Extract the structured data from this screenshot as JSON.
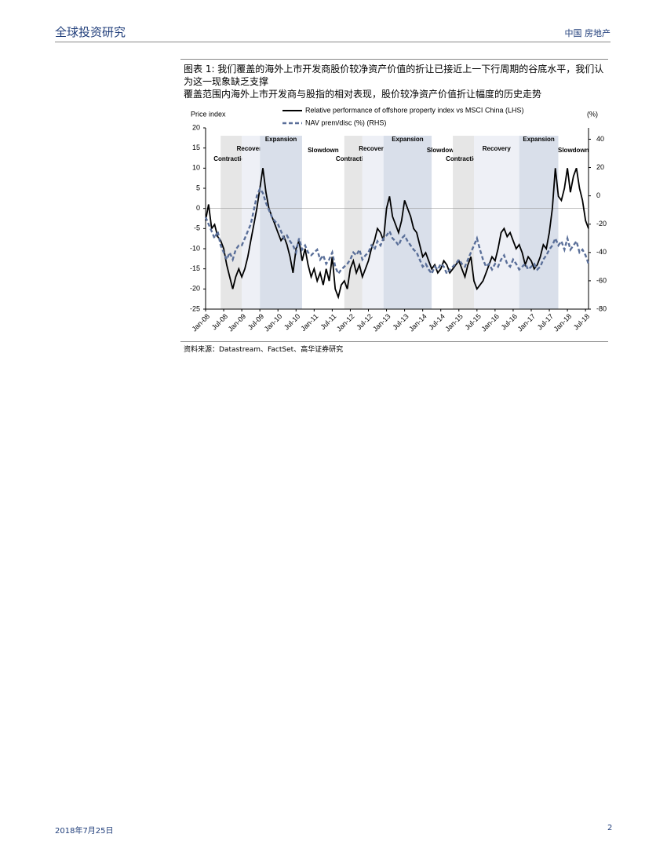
{
  "header": {
    "left": "全球投资研究",
    "right": "中国 房地产"
  },
  "figure": {
    "title": "图表 1: 我们覆盖的海外上市开发商股价较净资产价值的折让已接近上一下行周期的谷底水平，我们认为这一现象缺乏支撑",
    "subtitle": "覆盖范围内海外上市开发商与股指的相对表现，股价较净资产价值折让幅度的历史走势",
    "source": "资料来源：Datastream、FactSet、高华证券研究"
  },
  "chart_data": {
    "type": "line",
    "y_label": "Price index",
    "y2_label": "(%)",
    "x": [
      "2008-01",
      "2008-02",
      "2008-03",
      "2008-04",
      "2008-05",
      "2008-06",
      "2008-07",
      "2008-08",
      "2008-09",
      "2008-10",
      "2008-11",
      "2008-12",
      "2009-01",
      "2009-02",
      "2009-03",
      "2009-04",
      "2009-05",
      "2009-06",
      "2009-07",
      "2009-08",
      "2009-09",
      "2009-10",
      "2009-11",
      "2009-12",
      "2010-01",
      "2010-02",
      "2010-03",
      "2010-04",
      "2010-05",
      "2010-06",
      "2010-07",
      "2010-08",
      "2010-09",
      "2010-10",
      "2010-11",
      "2010-12",
      "2011-01",
      "2011-02",
      "2011-03",
      "2011-04",
      "2011-05",
      "2011-06",
      "2011-07",
      "2011-08",
      "2011-09",
      "2011-10",
      "2011-11",
      "2011-12",
      "2012-01",
      "2012-02",
      "2012-03",
      "2012-04",
      "2012-05",
      "2012-06",
      "2012-07",
      "2012-08",
      "2012-09",
      "2012-10",
      "2012-11",
      "2012-12",
      "2013-01",
      "2013-02",
      "2013-03",
      "2013-04",
      "2013-05",
      "2013-06",
      "2013-07",
      "2013-08",
      "2013-09",
      "2013-10",
      "2013-11",
      "2013-12",
      "2014-01",
      "2014-02",
      "2014-03",
      "2014-04",
      "2014-05",
      "2014-06",
      "2014-07",
      "2014-08",
      "2014-09",
      "2014-10",
      "2014-11",
      "2014-12",
      "2015-01",
      "2015-02",
      "2015-03",
      "2015-04",
      "2015-05",
      "2015-06",
      "2015-07",
      "2015-08",
      "2015-09",
      "2015-10",
      "2015-11",
      "2015-12",
      "2016-01",
      "2016-02",
      "2016-03",
      "2016-04",
      "2016-05",
      "2016-06",
      "2016-07",
      "2016-08",
      "2016-09",
      "2016-10",
      "2016-11",
      "2016-12",
      "2017-01",
      "2017-02",
      "2017-03",
      "2017-04",
      "2017-05",
      "2017-06",
      "2017-07",
      "2017-08",
      "2017-09",
      "2017-10",
      "2017-11",
      "2017-12",
      "2018-01",
      "2018-02",
      "2018-03",
      "2018-04",
      "2018-05",
      "2018-06",
      "2018-07",
      "2018-08"
    ],
    "xlim": [
      "2008-01",
      "2018-08"
    ],
    "xticks": [
      {
        "value": "2008-01",
        "label": "Jan-08"
      },
      {
        "value": "2008-07",
        "label": "Jul-08"
      },
      {
        "value": "2009-01",
        "label": "Jan-09"
      },
      {
        "value": "2009-07",
        "label": "Jul-09"
      },
      {
        "value": "2010-01",
        "label": "Jan-10"
      },
      {
        "value": "2010-07",
        "label": "Jul-10"
      },
      {
        "value": "2011-01",
        "label": "Jan-11"
      },
      {
        "value": "2011-07",
        "label": "Jul-11"
      },
      {
        "value": "2012-01",
        "label": "Jan-12"
      },
      {
        "value": "2012-07",
        "label": "Jul-12"
      },
      {
        "value": "2013-01",
        "label": "Jan-13"
      },
      {
        "value": "2013-07",
        "label": "Jul-13"
      },
      {
        "value": "2014-01",
        "label": "Jan-14"
      },
      {
        "value": "2014-07",
        "label": "Jul-14"
      },
      {
        "value": "2015-01",
        "label": "Jan-15"
      },
      {
        "value": "2015-07",
        "label": "Jul-15"
      },
      {
        "value": "2016-01",
        "label": "Jan-16"
      },
      {
        "value": "2016-07",
        "label": "Jul-16"
      },
      {
        "value": "2017-01",
        "label": "Jan-17"
      },
      {
        "value": "2017-07",
        "label": "Jul-17"
      },
      {
        "value": "2018-01",
        "label": "Jan-18"
      },
      {
        "value": "2018-07",
        "label": "Jul-18"
      }
    ],
    "ylim": [
      -25,
      20
    ],
    "yticks": [
      -25,
      -20,
      -15,
      -10,
      -5,
      0,
      5,
      10,
      15,
      20
    ],
    "y2lim": [
      -80,
      48
    ],
    "y2ticks": [
      -80,
      -60,
      -40,
      -20,
      0,
      20,
      40
    ],
    "zero_line": true,
    "regions": [
      {
        "label": "Contraction",
        "from": "2008-06",
        "to": "2009-01",
        "color": "#e6e6e6"
      },
      {
        "label": "Recovery",
        "from": "2009-01",
        "to": "2009-07",
        "color": "#eef0f6"
      },
      {
        "label": "Expansion",
        "from": "2009-07",
        "to": "2010-09",
        "color": "#d9dfea"
      },
      {
        "label": "Slowdown",
        "from": "2010-09",
        "to": "2011-11",
        "color": "#ffffff"
      },
      {
        "label": "Contraction",
        "from": "2011-11",
        "to": "2012-05",
        "color": "#e6e6e6"
      },
      {
        "label": "Recovery",
        "from": "2012-05",
        "to": "2012-12",
        "color": "#eef0f6"
      },
      {
        "label": "Expansion",
        "from": "2012-12",
        "to": "2014-04",
        "color": "#d9dfea"
      },
      {
        "label": "Slowdown",
        "from": "2014-04",
        "to": "2014-11",
        "color": "#ffffff"
      },
      {
        "label": "Contraction",
        "from": "2014-11",
        "to": "2015-06",
        "color": "#e6e6e6"
      },
      {
        "label": "Recovery",
        "from": "2015-06",
        "to": "2016-09",
        "color": "#eef0f6"
      },
      {
        "label": "Expansion",
        "from": "2016-09",
        "to": "2017-10",
        "color": "#d9dfea"
      },
      {
        "label": "Slowdown",
        "from": "2017-10",
        "to": "2018-08",
        "color": "#ffffff"
      }
    ],
    "series": [
      {
        "name": "Relative performance of offshore property index vs MSCI China (LHS)",
        "color": "#000000",
        "dash": false,
        "values": [
          -3,
          1,
          -5,
          -4,
          -7,
          -8,
          -10,
          -14,
          -17,
          -20,
          -17,
          -15,
          -17,
          -15,
          -12,
          -8,
          -4,
          0,
          5,
          10,
          4,
          0,
          -2,
          -4,
          -6,
          -8,
          -7,
          -9,
          -12,
          -16,
          -10,
          -8,
          -13,
          -10,
          -14,
          -17,
          -15,
          -18,
          -16,
          -19,
          -15,
          -18,
          -12,
          -20,
          -22,
          -19,
          -18,
          -20,
          -15,
          -13,
          -16,
          -14,
          -17,
          -15,
          -13,
          -10,
          -8,
          -5,
          -6,
          -8,
          0,
          3,
          -2,
          -4,
          -6,
          -3,
          2,
          0,
          -2,
          -5,
          -6,
          -9,
          -12,
          -11,
          -13,
          -15,
          -14,
          -16,
          -15,
          -13,
          -14,
          -16,
          -15,
          -14,
          -13,
          -15,
          -17,
          -14,
          -12,
          -18,
          -20,
          -19,
          -18,
          -16,
          -14,
          -12,
          -13,
          -10,
          -6,
          -5,
          -7,
          -6,
          -8,
          -10,
          -9,
          -11,
          -14,
          -12,
          -13,
          -15,
          -14,
          -12,
          -9,
          -10,
          -6,
          0,
          10,
          3,
          2,
          5,
          10,
          4,
          8,
          10,
          5,
          2,
          -3,
          -5
        ]
      },
      {
        "name": "NAV prem/disc (%) (RHS)",
        "color": "#5a6f99",
        "dash": true,
        "axis": "y2",
        "values": [
          -15,
          -20,
          -25,
          -30,
          -25,
          -35,
          -40,
          -45,
          -40,
          -45,
          -38,
          -35,
          -35,
          -30,
          -25,
          -20,
          -10,
          0,
          5,
          2,
          -5,
          -10,
          -15,
          -18,
          -20,
          -25,
          -30,
          -28,
          -32,
          -35,
          -40,
          -30,
          -38,
          -35,
          -40,
          -42,
          -40,
          -38,
          -45,
          -42,
          -48,
          -45,
          -40,
          -50,
          -55,
          -52,
          -50,
          -48,
          -45,
          -40,
          -42,
          -38,
          -45,
          -42,
          -40,
          -35,
          -38,
          -32,
          -35,
          -30,
          -28,
          -25,
          -30,
          -32,
          -35,
          -30,
          -28,
          -32,
          -35,
          -38,
          -40,
          -45,
          -50,
          -48,
          -52,
          -55,
          -50,
          -52,
          -48,
          -50,
          -55,
          -52,
          -50,
          -48,
          -45,
          -48,
          -50,
          -45,
          -40,
          -35,
          -30,
          -38,
          -45,
          -50,
          -48,
          -52,
          -48,
          -50,
          -45,
          -42,
          -48,
          -50,
          -45,
          -48,
          -52,
          -50,
          -48,
          -52,
          -50,
          -48,
          -52,
          -50,
          -45,
          -42,
          -38,
          -35,
          -30,
          -35,
          -32,
          -38,
          -30,
          -38,
          -35,
          -32,
          -40,
          -38,
          -42,
          -48
        ]
      }
    ]
  },
  "footer": {
    "date": "2018年7月25日",
    "page": "2"
  }
}
